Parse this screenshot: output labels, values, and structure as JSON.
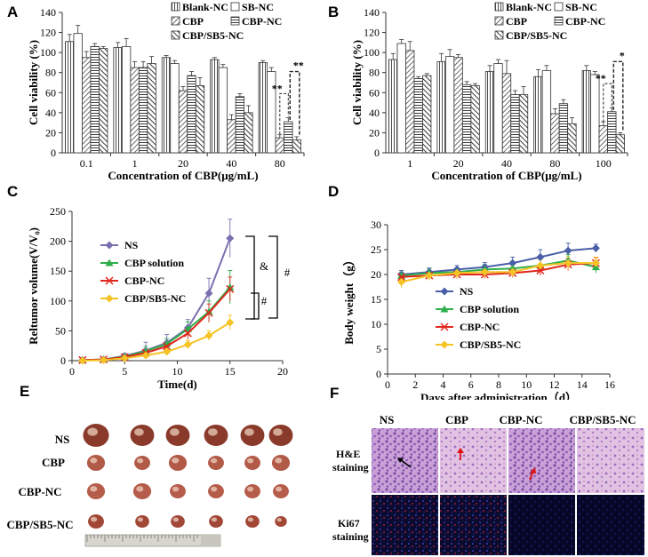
{
  "panels": {
    "a": {
      "letter": "A"
    },
    "b": {
      "letter": "B"
    },
    "c": {
      "letter": "C"
    },
    "d": {
      "letter": "D"
    },
    "e": {
      "letter": "E",
      "rows": [
        "NS",
        "CBP",
        "CBP-NC",
        "CBP/SB5-NC"
      ],
      "ruler": "ruler"
    },
    "f": {
      "letter": "F",
      "cols": [
        "NS",
        "CBP",
        "CBP-NC",
        "CBP/SB5-NC"
      ],
      "row1": [
        "H&E",
        "staining"
      ],
      "row2": [
        "Ki67",
        "staining"
      ]
    }
  },
  "chart_data": [
    {
      "id": "a",
      "type": "bar",
      "ylabel": "Cell viability (%)",
      "xlabel": "Concentration of CBP(μg/mL)",
      "ylim": [
        0,
        140
      ],
      "yticks": [
        0,
        20,
        40,
        60,
        80,
        100,
        120,
        140
      ],
      "categories": [
        "0.1",
        "1",
        "20",
        "40",
        "80"
      ],
      "series": [
        {
          "name": "Blank-NC",
          "pattern": "vline",
          "values": [
            111,
            105,
            95,
            93,
            90
          ],
          "errors": [
            7,
            5,
            2,
            2,
            2
          ]
        },
        {
          "name": "SB-NC",
          "pattern": "none",
          "values": [
            119,
            106,
            89,
            85,
            81
          ],
          "errors": [
            8,
            8,
            3,
            3,
            4
          ]
        },
        {
          "name": "CBP",
          "pattern": "dline",
          "values": [
            95,
            85,
            62,
            33,
            15
          ],
          "errors": [
            6,
            6,
            4,
            5,
            3
          ]
        },
        {
          "name": "CBP-NC",
          "pattern": "hline",
          "values": [
            106,
            85,
            77,
            56,
            31
          ],
          "errors": [
            3,
            6,
            4,
            3,
            4
          ]
        },
        {
          "name": "CBP/SB5-NC",
          "pattern": "cross",
          "values": [
            104,
            89,
            67,
            40,
            13
          ],
          "errors": [
            2,
            7,
            8,
            7,
            3
          ]
        }
      ],
      "annotations": [
        "**",
        "**"
      ]
    },
    {
      "id": "b",
      "type": "bar",
      "ylabel": "Cell viability (%)",
      "xlabel": "Concentration of CBP(μg/mL)",
      "ylim": [
        0,
        140
      ],
      "yticks": [
        0,
        20,
        40,
        60,
        80,
        100,
        120,
        140
      ],
      "categories": [
        "1",
        "20",
        "40",
        "80",
        "100"
      ],
      "series": [
        {
          "name": "Blank-NC",
          "pattern": "vline",
          "values": [
            93,
            91,
            81,
            76,
            82
          ],
          "errors": [
            6,
            8,
            6,
            7,
            5
          ]
        },
        {
          "name": "SB-NC",
          "pattern": "none",
          "values": [
            109,
            96,
            89,
            82,
            78
          ],
          "errors": [
            4,
            7,
            4,
            5,
            3
          ]
        },
        {
          "name": "CBP",
          "pattern": "dline",
          "values": [
            102,
            95,
            79,
            39,
            27
          ],
          "errors": [
            9,
            3,
            13,
            5,
            4
          ]
        },
        {
          "name": "CBP-NC",
          "pattern": "hline",
          "values": [
            74,
            68,
            58,
            49,
            41
          ],
          "errors": [
            2,
            3,
            4,
            4,
            4
          ]
        },
        {
          "name": "CBP/SB5-NC",
          "pattern": "cross",
          "values": [
            77,
            67,
            58,
            29,
            18
          ],
          "errors": [
            2,
            2,
            8,
            6,
            2
          ]
        }
      ],
      "annotations": [
        "**",
        "*"
      ]
    },
    {
      "id": "c",
      "type": "line",
      "ylabel": "Reltumor volume(V/V₀)",
      "xlabel": "Time(d)",
      "xlim": [
        0,
        20
      ],
      "ylim": [
        0,
        250
      ],
      "xticks": [
        0,
        5,
        10,
        15,
        20
      ],
      "yticks": [
        0,
        50,
        100,
        150,
        200,
        250
      ],
      "x": [
        1,
        3,
        5,
        7,
        9,
        11,
        13,
        15
      ],
      "series": [
        {
          "name": "NS",
          "color": "#7b6fb0",
          "marker": "diamond",
          "values": [
            1,
            2,
            8,
            17,
            30,
            55,
            113,
            205
          ],
          "errors": [
            2,
            2,
            4,
            14,
            14,
            14,
            25,
            32
          ]
        },
        {
          "name": "CBP solution",
          "color": "#2eae4a",
          "marker": "triangle",
          "values": [
            1,
            2,
            7,
            16,
            28,
            53,
            82,
            123
          ],
          "errors": [
            2,
            2,
            3,
            8,
            9,
            12,
            18,
            28
          ]
        },
        {
          "name": "CBP-NC",
          "color": "#e0261c",
          "marker": "x",
          "values": [
            1,
            2,
            6,
            13,
            24,
            46,
            80,
            120
          ],
          "errors": [
            2,
            2,
            3,
            6,
            8,
            10,
            15,
            20
          ]
        },
        {
          "name": "CBP/SB5-NC",
          "color": "#f5c324",
          "marker": "diamond",
          "values": [
            0,
            1,
            4,
            9,
            15,
            27,
            42,
            64
          ],
          "errors": [
            2,
            2,
            2,
            6,
            6,
            7,
            8,
            12
          ]
        }
      ],
      "annotations": [
        "&",
        "#",
        "#"
      ]
    },
    {
      "id": "d",
      "type": "line",
      "ylabel": "Body weight（g）",
      "xlabel": "Days after administration（d）",
      "xlim": [
        0,
        16
      ],
      "ylim": [
        0,
        30
      ],
      "xticks": [
        0,
        2,
        4,
        6,
        8,
        10,
        12,
        14,
        16
      ],
      "yticks": [
        0,
        5,
        10,
        15,
        20,
        25,
        30
      ],
      "x": [
        1,
        3,
        5,
        7,
        9,
        11,
        13,
        15
      ],
      "series": [
        {
          "name": "NS",
          "color": "#4a5fa8",
          "marker": "diamond",
          "values": [
            20,
            20.5,
            21,
            21.5,
            22.3,
            23.5,
            24.8,
            25.3
          ],
          "errors": [
            0.8,
            0.8,
            0.8,
            0.9,
            1.2,
            1.5,
            1.5,
            0.8
          ]
        },
        {
          "name": "CBP solution",
          "color": "#2eae4a",
          "marker": "triangle",
          "values": [
            19.8,
            20.3,
            20.5,
            21,
            21.2,
            21.8,
            22.8,
            21.5
          ],
          "errors": [
            0.7,
            0.8,
            0.8,
            1,
            1,
            1.2,
            1.2,
            1.2
          ]
        },
        {
          "name": "CBP-NC",
          "color": "#e0261c",
          "marker": "x",
          "values": [
            19.5,
            19.8,
            20,
            20,
            20.3,
            20.8,
            22,
            22.3
          ],
          "errors": [
            0.8,
            0.8,
            0.8,
            0.8,
            0.9,
            1,
            1.2,
            1.1
          ]
        },
        {
          "name": "CBP/SB5-NC",
          "color": "#f5c324",
          "marker": "diamond",
          "values": [
            18.5,
            19.8,
            20.3,
            20.5,
            20.5,
            21.8,
            22.3,
            22.3
          ],
          "errors": [
            1.2,
            1,
            1,
            1,
            1,
            1.2,
            1.3,
            1.2
          ]
        }
      ]
    }
  ]
}
